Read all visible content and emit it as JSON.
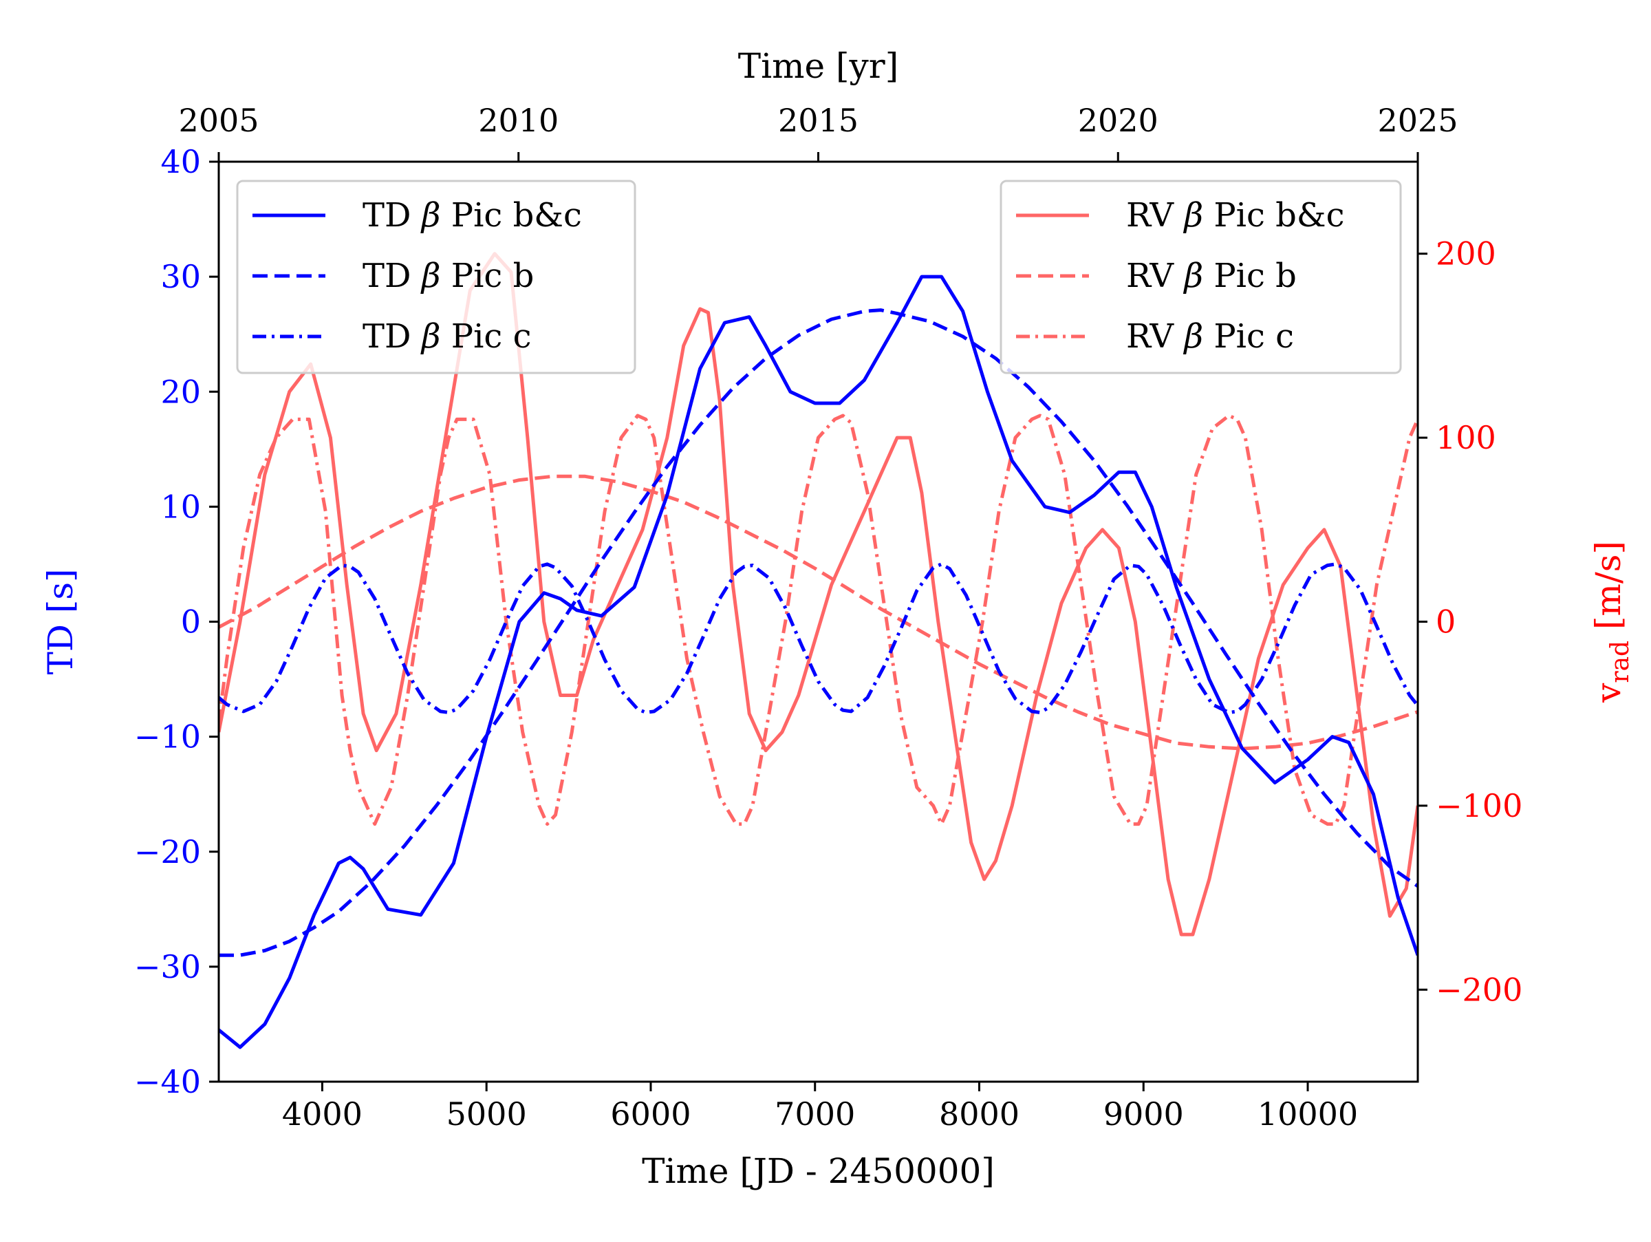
{
  "chart_data": {
    "type": "line",
    "x_axis_bottom": {
      "label": "Time [JD - 2450000]",
      "range": [
        3370,
        10670
      ],
      "ticks": [
        4000,
        5000,
        6000,
        7000,
        8000,
        9000,
        10000
      ],
      "tick_labels": [
        "4000",
        "5000",
        "6000",
        "7000",
        "8000",
        "9000",
        "10000"
      ]
    },
    "x_axis_top": {
      "label": "Time [yr]",
      "range": [
        2005,
        2025
      ],
      "ticks": [
        2005,
        2010,
        2015,
        2020,
        2025
      ],
      "tick_labels": [
        "2005",
        "2010",
        "2015",
        "2020",
        "2025"
      ]
    },
    "y_axis_left": {
      "label": "TD [s]",
      "range": [
        -40,
        40
      ],
      "ticks": [
        -40,
        -30,
        -20,
        -10,
        0,
        10,
        20,
        30,
        40
      ],
      "tick_labels": [
        "−40",
        "−30",
        "−20",
        "−10",
        "0",
        "10",
        "20",
        "30",
        "40"
      ],
      "color": "#0000ff"
    },
    "y_axis_right": {
      "label_main": "v",
      "label_sub": "rad",
      "label_unit": " [m/s]",
      "range": [
        -250,
        250
      ],
      "ticks": [
        -200,
        -100,
        0,
        100,
        200
      ],
      "tick_labels": [
        "−200",
        "−100",
        "0",
        "100",
        "200"
      ],
      "color": "#ff0000"
    },
    "grid": false,
    "legends": [
      {
        "placement": "top-left",
        "entries": [
          {
            "prefix": "TD ",
            "greek": "β",
            "suffix": " Pic b&c",
            "color": "#0000ff",
            "style": "solid"
          },
          {
            "prefix": "TD ",
            "greek": "β",
            "suffix": " Pic b",
            "color": "#0000ff",
            "style": "dashed"
          },
          {
            "prefix": "TD ",
            "greek": "β",
            "suffix": " Pic c",
            "color": "#0000ff",
            "style": "dashdot"
          }
        ]
      },
      {
        "placement": "top-right",
        "entries": [
          {
            "prefix": "RV ",
            "greek": "β",
            "suffix": " Pic b&c",
            "color": "#ff6666",
            "style": "solid"
          },
          {
            "prefix": "RV ",
            "greek": "β",
            "suffix": " Pic b",
            "color": "#ff6666",
            "style": "dashed"
          },
          {
            "prefix": "RV ",
            "greek": "β",
            "suffix": " Pic c",
            "color": "#ff6666",
            "style": "dashdot"
          }
        ]
      }
    ],
    "series": [
      {
        "name": "TD β Pic b&c",
        "axis": "left",
        "color": "#0000ff",
        "style": "solid",
        "x": [
          3370,
          3500,
          3650,
          3800,
          3950,
          4100,
          4170,
          4250,
          4400,
          4600,
          4800,
          5000,
          5200,
          5350,
          5450,
          5550,
          5700,
          5900,
          6100,
          6300,
          6450,
          6600,
          6700,
          6850,
          7000,
          7150,
          7300,
          7500,
          7650,
          7770,
          7900,
          8050,
          8200,
          8400,
          8550,
          8700,
          8850,
          8950,
          9050,
          9200,
          9400,
          9600,
          9800,
          10000,
          10150,
          10250,
          10400,
          10550,
          10670
        ],
        "y": [
          -35.5,
          -37,
          -35,
          -31,
          -25.5,
          -21,
          -20.5,
          -21.5,
          -25,
          -25.5,
          -21,
          -10,
          0,
          2.5,
          2,
          1,
          0.5,
          3,
          11,
          22,
          26,
          26.5,
          24,
          20,
          19,
          19,
          21,
          26,
          30,
          30,
          27,
          20,
          14,
          10,
          9.5,
          11,
          13,
          13,
          10,
          3,
          -5,
          -11,
          -14,
          -12,
          -10,
          -10.5,
          -15,
          -24,
          -29
        ]
      },
      {
        "name": "TD β Pic b",
        "axis": "left",
        "color": "#0000ff",
        "style": "dashed",
        "x": [
          3370,
          3500,
          3650,
          3800,
          3950,
          4100,
          4300,
          4500,
          4700,
          4900,
          5100,
          5300,
          5500,
          5700,
          5900,
          6100,
          6300,
          6500,
          6700,
          6900,
          7100,
          7300,
          7400,
          7500,
          7700,
          7900,
          8100,
          8300,
          8500,
          8700,
          8900,
          9100,
          9300,
          9500,
          9700,
          9900,
          10100,
          10300,
          10500,
          10670
        ],
        "y": [
          -29,
          -29,
          -28.6,
          -27.8,
          -26.6,
          -25.2,
          -22.6,
          -19.5,
          -15.9,
          -12,
          -7.8,
          -3.5,
          0.9,
          5.3,
          9.5,
          13.5,
          17.1,
          20.3,
          22.9,
          24.9,
          26.3,
          27,
          27.1,
          26.8,
          26.1,
          24.8,
          22.9,
          20.4,
          17.4,
          14,
          10.1,
          5.9,
          1.6,
          -2.8,
          -7.1,
          -11.2,
          -15,
          -18.4,
          -21.3,
          -23
        ]
      },
      {
        "name": "TD β Pic c",
        "axis": "left",
        "color": "#0000ff",
        "style": "dashdot",
        "x": [
          3370,
          3420,
          3520,
          3620,
          3720,
          3820,
          3920,
          4020,
          4120,
          4170,
          4220,
          4320,
          4420,
          4520,
          4620,
          4720,
          4770,
          4820,
          4920,
          5020,
          5120,
          5220,
          5320,
          5370,
          5420,
          5520,
          5620,
          5720,
          5820,
          5920,
          5970,
          6020,
          6120,
          6220,
          6320,
          6420,
          6520,
          6570,
          6620,
          6720,
          6820,
          6920,
          7020,
          7120,
          7170,
          7220,
          7320,
          7420,
          7520,
          7620,
          7720,
          7770,
          7820,
          7920,
          8020,
          8120,
          8220,
          8320,
          8370,
          8420,
          8520,
          8620,
          8720,
          8820,
          8920,
          8970,
          9020,
          9120,
          9220,
          9320,
          9420,
          9520,
          9570,
          9620,
          9720,
          9820,
          9920,
          10020,
          10120,
          10170,
          10220,
          10320,
          10420,
          10520,
          10620,
          10670
        ],
        "y": [
          -6.6,
          -7.2,
          -7.8,
          -7.2,
          -5.2,
          -2.1,
          1.2,
          3.8,
          4.9,
          4.8,
          4.3,
          2.0,
          -1.3,
          -4.5,
          -6.8,
          -7.8,
          -7.9,
          -7.6,
          -6.0,
          -3.3,
          0.0,
          3.1,
          4.8,
          5.0,
          4.7,
          3.1,
          0.0,
          -3.3,
          -6.0,
          -7.6,
          -7.9,
          -7.8,
          -6.8,
          -4.5,
          -1.3,
          2.0,
          4.3,
          4.8,
          4.9,
          3.8,
          1.2,
          -2.1,
          -5.2,
          -7.2,
          -7.7,
          -7.8,
          -6.6,
          -3.9,
          -0.7,
          2.7,
          4.7,
          5.0,
          4.6,
          2.3,
          -1.0,
          -4.3,
          -6.7,
          -7.8,
          -7.9,
          -7.5,
          -5.5,
          -2.6,
          0.6,
          3.7,
          4.9,
          4.8,
          4.1,
          1.4,
          -1.9,
          -5.0,
          -7.2,
          -7.9,
          -7.8,
          -7.2,
          -5.0,
          -1.9,
          1.4,
          4.1,
          4.9,
          5.0,
          4.7,
          2.8,
          -0.4,
          -3.7,
          -6.4,
          -7.3
        ]
      },
      {
        "name": "RV β Pic b&c",
        "axis": "right",
        "color": "#ff6666",
        "style": "solid",
        "x": [
          3370,
          3500,
          3650,
          3800,
          3930,
          4050,
          4150,
          4250,
          4330,
          4450,
          4600,
          4750,
          4900,
          5050,
          5150,
          5250,
          5350,
          5450,
          5550,
          5650,
          5800,
          5950,
          6100,
          6200,
          6300,
          6350,
          6420,
          6500,
          6600,
          6700,
          6800,
          6900,
          7000,
          7100,
          7200,
          7300,
          7400,
          7500,
          7580,
          7650,
          7750,
          7850,
          7950,
          8030,
          8100,
          8200,
          8350,
          8500,
          8650,
          8750,
          8850,
          8950,
          9050,
          9150,
          9230,
          9300,
          9400,
          9550,
          9700,
          9850,
          10000,
          10100,
          10200,
          10300,
          10400,
          10500,
          10600,
          10670
        ],
        "y": [
          -60,
          0,
          80,
          125,
          140,
          100,
          20,
          -50,
          -70,
          -50,
          20,
          100,
          180,
          200,
          190,
          100,
          0,
          -40,
          -40,
          -10,
          20,
          50,
          100,
          150,
          170,
          168,
          120,
          20,
          -50,
          -70,
          -60,
          -40,
          -10,
          20,
          40,
          60,
          80,
          100,
          100,
          70,
          0,
          -60,
          -120,
          -140,
          -130,
          -100,
          -40,
          10,
          40,
          50,
          40,
          0,
          -70,
          -140,
          -170,
          -170,
          -140,
          -80,
          -20,
          20,
          40,
          50,
          30,
          -40,
          -110,
          -160,
          -145,
          -100
        ]
      },
      {
        "name": "RV β Pic b",
        "axis": "right",
        "color": "#ff6666",
        "style": "dashed",
        "x": [
          3370,
          3600,
          3800,
          4000,
          4200,
          4400,
          4600,
          4800,
          5000,
          5200,
          5400,
          5600,
          5800,
          6000,
          6200,
          6400,
          6600,
          6800,
          7000,
          7200,
          7400,
          7600,
          7800,
          8000,
          8200,
          8400,
          8600,
          8800,
          9000,
          9200,
          9400,
          9600,
          9800,
          10000,
          10200,
          10400,
          10600,
          10670
        ],
        "y": [
          -3,
          8,
          19,
          30,
          41,
          51,
          60,
          67,
          73,
          77,
          79,
          79,
          76,
          71,
          65,
          57,
          48,
          39,
          29,
          18,
          7,
          -3,
          -13,
          -23,
          -32,
          -41,
          -49,
          -56,
          -61,
          -66,
          -68,
          -69,
          -68,
          -66,
          -62,
          -57,
          -51,
          -49
        ]
      },
      {
        "name": "RV β Pic c",
        "axis": "right",
        "color": "#ff6666",
        "style": "dashdot",
        "x": [
          3370,
          3420,
          3520,
          3620,
          3720,
          3820,
          3920,
          4020,
          4120,
          4170,
          4220,
          4320,
          4420,
          4520,
          4620,
          4720,
          4770,
          4820,
          4920,
          5020,
          5120,
          5220,
          5320,
          5370,
          5420,
          5520,
          5620,
          5720,
          5820,
          5920,
          5970,
          6020,
          6120,
          6220,
          6320,
          6420,
          6520,
          6570,
          6620,
          6720,
          6820,
          6920,
          7020,
          7120,
          7170,
          7220,
          7320,
          7420,
          7520,
          7620,
          7720,
          7770,
          7820,
          7920,
          8020,
          8120,
          8220,
          8320,
          8370,
          8420,
          8520,
          8620,
          8720,
          8820,
          8920,
          8970,
          9020,
          9120,
          9220,
          9320,
          9420,
          9520,
          9570,
          9620,
          9720,
          9820,
          9920,
          10020,
          10120,
          10170,
          10220,
          10320,
          10420,
          10520,
          10620,
          10670
        ],
        "y": [
          -55,
          -20,
          40,
          80,
          100,
          110,
          110,
          60,
          -40,
          -70,
          -90,
          -110,
          -90,
          -40,
          20,
          80,
          100,
          110,
          110,
          80,
          0,
          -60,
          -100,
          -110,
          -105,
          -60,
          0,
          60,
          100,
          112,
          110,
          100,
          40,
          -20,
          -60,
          -95,
          -110,
          -110,
          -100,
          -50,
          0,
          60,
          100,
          110,
          112,
          108,
          70,
          10,
          -50,
          -90,
          -100,
          -110,
          -100,
          -50,
          0,
          60,
          100,
          110,
          112,
          110,
          80,
          20,
          -40,
          -95,
          -110,
          -110,
          -100,
          -40,
          20,
          80,
          105,
          112,
          110,
          100,
          50,
          -20,
          -80,
          -105,
          -110,
          -110,
          -100,
          -40,
          20,
          60,
          100,
          110
        ]
      }
    ]
  }
}
